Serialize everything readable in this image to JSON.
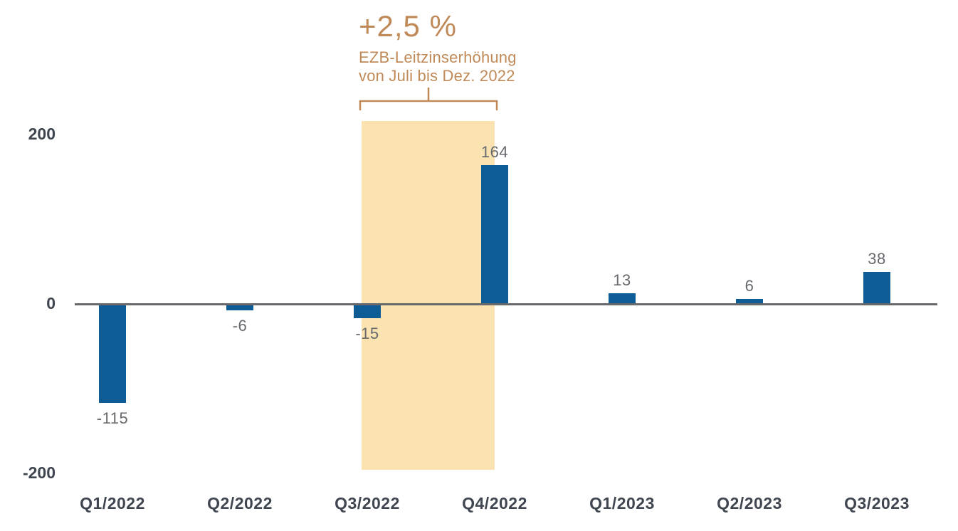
{
  "page": {
    "background": "#ffffff"
  },
  "chart_data": {
    "type": "bar",
    "title": "",
    "xlabel": "",
    "ylabel": "",
    "categories": [
      "Q1/2022",
      "Q2/2022",
      "Q3/2022",
      "Q4/2022",
      "Q1/2023",
      "Q2/2023",
      "Q3/2023"
    ],
    "values": [
      -115,
      -6,
      -15,
      164,
      13,
      6,
      38
    ],
    "value_labels": [
      "-115",
      "-6",
      "-15",
      "164",
      "13",
      "6",
      "38"
    ],
    "y_axis": {
      "ticks": [
        200,
        0,
        -200
      ],
      "tick_labels": [
        "200",
        "0",
        "-200"
      ],
      "range": [
        -200,
        220
      ]
    },
    "grid": false,
    "legend": null,
    "colors": {
      "bar": "#0e5c96",
      "axis_line": "#67696c",
      "tick_label": "#3f4650",
      "category_label": "#3f4650",
      "value_label": "#66696d",
      "highlight_band": "#fbe3b1",
      "annotation": "#c08a58"
    },
    "highlight_band": {
      "from_category": "Q3/2022",
      "to_category": "Q4/2022",
      "color": "#fbe3b1"
    },
    "annotation": {
      "headline": "+2,5 %",
      "line1": "EZB-Leitzinserhöhung",
      "line2": "von Juli bis Dez. 2022",
      "color": "#c08a58"
    }
  }
}
